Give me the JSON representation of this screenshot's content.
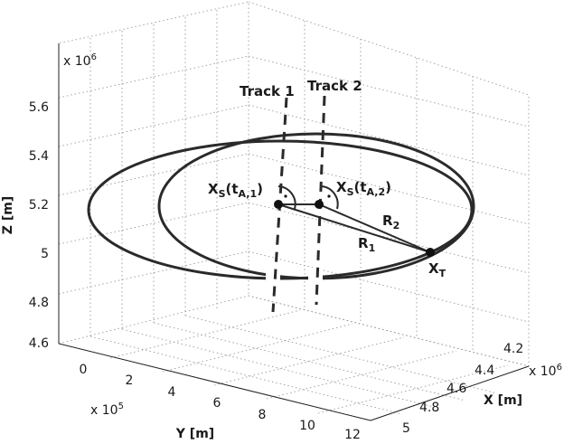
{
  "axes": {
    "z_exponent": "x 10",
    "z_exponent_power": "6",
    "z_label": "Z [m]",
    "z_ticks": [
      "5.6",
      "5.4",
      "5.2",
      "5",
      "4.8",
      "4.6"
    ],
    "y_exponent": "x 10",
    "y_exponent_power": "5",
    "y_label": "Y [m]",
    "y_ticks": [
      "0",
      "2",
      "4",
      "6",
      "8",
      "10",
      "12"
    ],
    "x_exponent": "x 10",
    "x_exponent_power": "6",
    "x_label": "X [m]",
    "x_ticks": [
      "4.2",
      "4.4",
      "4.6",
      "4.8",
      "5"
    ]
  },
  "labels": {
    "track1": "Track 1",
    "track2": "Track 2",
    "xs1_main": "X",
    "xs1_sub": "S",
    "xs1_arg": "(t",
    "xs1_argsub": "A,1",
    "xs1_close": ")",
    "xs2_main": "X",
    "xs2_sub": "S",
    "xs2_arg": "(t",
    "xs2_argsub": "A,2",
    "xs2_close": ")",
    "r1_main": "R",
    "r1_sub": "1",
    "r2_main": "R",
    "r2_sub": "2",
    "xt_main": "X",
    "xt_sub": "T"
  },
  "colors": {
    "ink": "#2a2a2a",
    "grid": "#9a9a9a",
    "background": "#ffffff"
  }
}
